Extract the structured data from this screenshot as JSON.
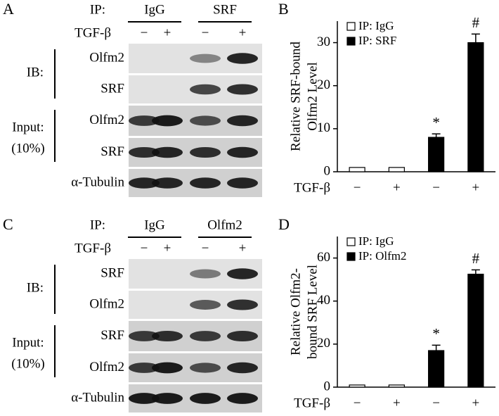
{
  "blots": [
    {
      "panel": "A",
      "ip_label": "IP:",
      "groups": [
        "IgG",
        "SRF"
      ],
      "treatment_label": "TGF-β",
      "treatment_signs": [
        "−",
        "+",
        "−",
        "+"
      ],
      "ib_label": "IB:",
      "ib_rows": [
        "Olfm2",
        "SRF"
      ],
      "input_label": "Input:",
      "input_sublabel": "(10%)",
      "input_rows": [
        "Olfm2",
        "SRF"
      ],
      "loading_control": "α-Tubulin"
    },
    {
      "panel": "C",
      "ip_label": "IP:",
      "groups": [
        "IgG",
        "Olfm2"
      ],
      "treatment_label": "TGF-β",
      "treatment_signs": [
        "−",
        "+",
        "−",
        "+"
      ],
      "ib_label": "IB:",
      "ib_rows": [
        "SRF",
        "Olfm2"
      ],
      "input_label": "Input:",
      "input_sublabel": "(10%)",
      "input_rows": [
        "SRF",
        "Olfm2"
      ],
      "loading_control": "α-Tubulin"
    }
  ],
  "chart_data": [
    {
      "type": "bar",
      "panel": "B",
      "ylabel": [
        "Relative SRF-bound",
        "Olfm2 Level"
      ],
      "xlabel": "TGF-β",
      "categories": [
        "−",
        "+",
        "−",
        "+"
      ],
      "ylim": [
        0,
        35
      ],
      "yticks": [
        0,
        10,
        20,
        30
      ],
      "legend": "upper left",
      "series": [
        {
          "name": "IP: IgG",
          "color": "#ffffff",
          "edgecolor": "#000000",
          "values": [
            1,
            1,
            null,
            null
          ],
          "errors": [
            null,
            null,
            null,
            null
          ],
          "markers": [
            null,
            null,
            null,
            null
          ]
        },
        {
          "name": "IP: SRF",
          "color": "#000000",
          "edgecolor": "#000000",
          "values": [
            null,
            null,
            8,
            30
          ],
          "errors": [
            null,
            null,
            0.8,
            2
          ],
          "markers": [
            null,
            null,
            "*",
            "#"
          ]
        }
      ]
    },
    {
      "type": "bar",
      "panel": "D",
      "ylabel": [
        "Relative Olfm2-",
        "bound SRF Level"
      ],
      "xlabel": "TGF-β",
      "categories": [
        "−",
        "+",
        "−",
        "+"
      ],
      "ylim": [
        0,
        70
      ],
      "yticks": [
        0,
        20,
        40,
        60
      ],
      "legend": "upper left",
      "series": [
        {
          "name": "IP: IgG",
          "color": "#ffffff",
          "edgecolor": "#000000",
          "values": [
            1,
            1,
            null,
            null
          ],
          "errors": [
            null,
            null,
            null,
            null
          ],
          "markers": [
            null,
            null,
            null,
            null
          ]
        },
        {
          "name": "IP: Olfm2",
          "color": "#000000",
          "edgecolor": "#000000",
          "values": [
            null,
            null,
            17,
            52.5
          ],
          "errors": [
            null,
            null,
            2.5,
            2
          ],
          "markers": [
            null,
            null,
            "*",
            "#"
          ]
        }
      ]
    }
  ]
}
